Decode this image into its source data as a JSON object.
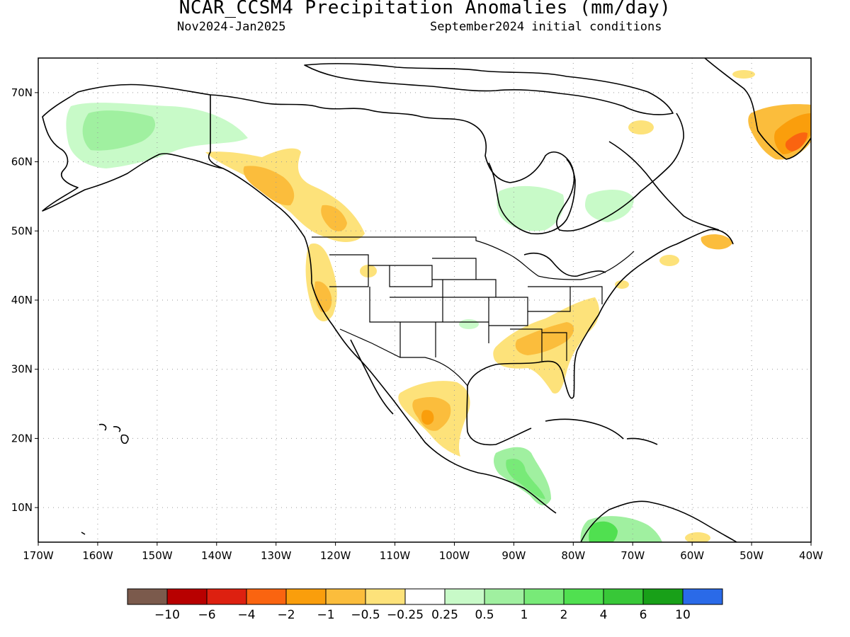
{
  "header": {
    "title": "NCAR_CCSM4 Precipitation Anomalies (mm/day)",
    "period": "Nov2024-Jan2025",
    "init": "September2024 initial conditions"
  },
  "map": {
    "region": "North America",
    "projection": "cylindrical equidistant",
    "lon_range": [
      -170,
      -40
    ],
    "lat_range": [
      5,
      75
    ],
    "gridlines": "dotted",
    "lon_ticks": [
      "170W",
      "160W",
      "150W",
      "140W",
      "130W",
      "120W",
      "110W",
      "100W",
      "90W",
      "80W",
      "70W",
      "60W",
      "50W",
      "40W"
    ],
    "lat_ticks": [
      "10N",
      "20N",
      "30N",
      "40N",
      "50N",
      "60N",
      "70N"
    ]
  },
  "colorbar": {
    "colors": [
      "#7b5a4c",
      "#b80000",
      "#dd2010",
      "#fa6410",
      "#fa9e0c",
      "#fbbd3c",
      "#fde27a",
      "#ffffff",
      "#c8fac8",
      "#a0f0a0",
      "#78ea78",
      "#50e050",
      "#38c838",
      "#18a018",
      "#2a6ae8"
    ],
    "labels": [
      "−10",
      "−6",
      "−4",
      "−2",
      "−1",
      "−0.5",
      "−0.25",
      "0.25",
      "0.5",
      "1",
      "2",
      "4",
      "6",
      "10"
    ]
  },
  "anomalies": {
    "dry_colors": [
      "#fde27a",
      "#fbbd3c",
      "#fa9e0c",
      "#fa6410"
    ],
    "wet_colors": [
      "#c8fac8",
      "#a0f0a0",
      "#78ea78",
      "#50e050"
    ]
  }
}
